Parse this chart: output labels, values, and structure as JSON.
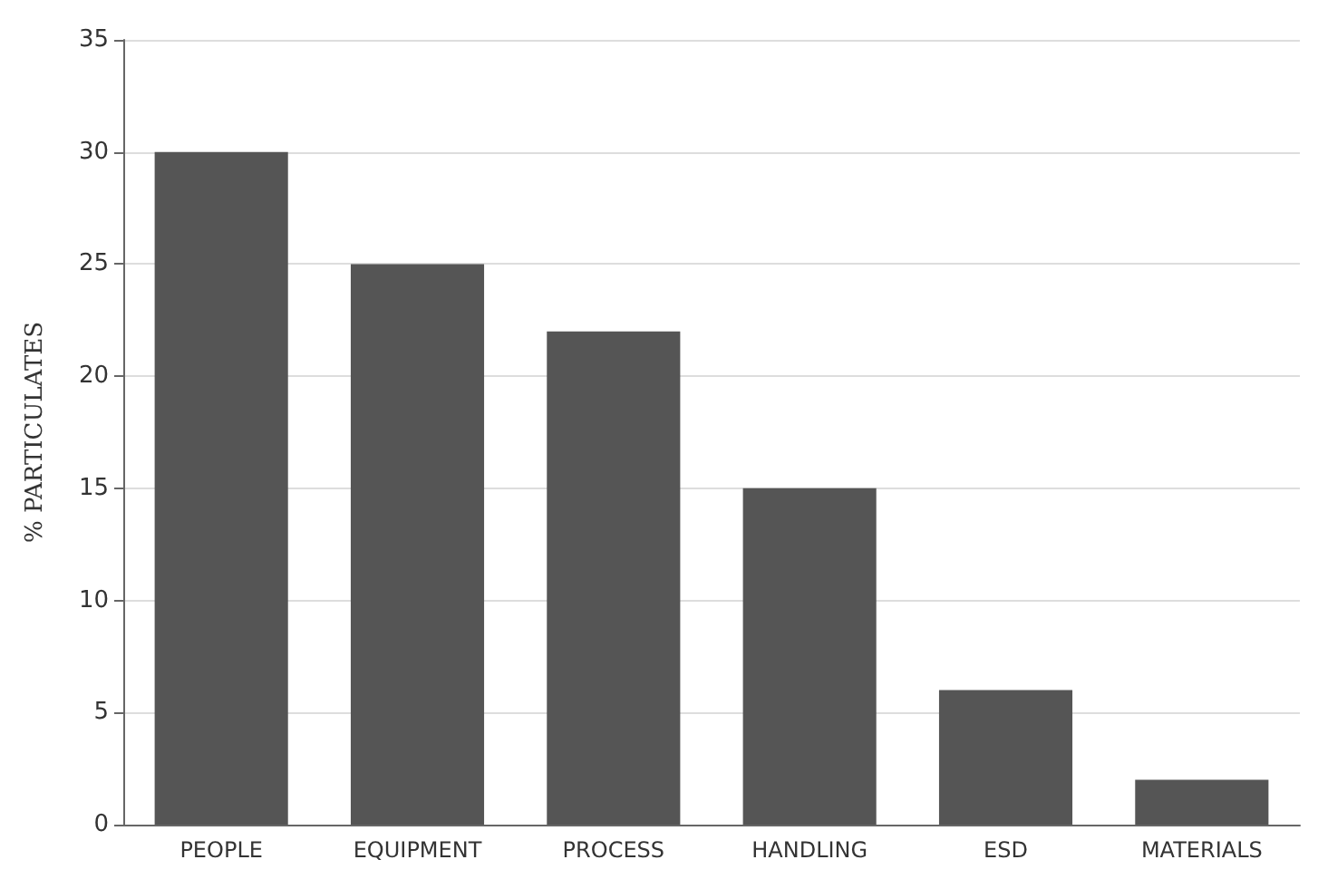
{
  "chart_data": {
    "type": "bar",
    "ylabel": "% PARTICULATES",
    "categories": [
      "PEOPLE",
      "EQUIPMENT",
      "PROCESS",
      "HANDLING",
      "ESD",
      "MATERIALS"
    ],
    "values": [
      30,
      25,
      22,
      15,
      6,
      2
    ],
    "color": "#555555",
    "ylim": [
      0,
      35
    ],
    "yticks": [
      0,
      5,
      10,
      15,
      20,
      25,
      30,
      35
    ],
    "grid": "y"
  }
}
